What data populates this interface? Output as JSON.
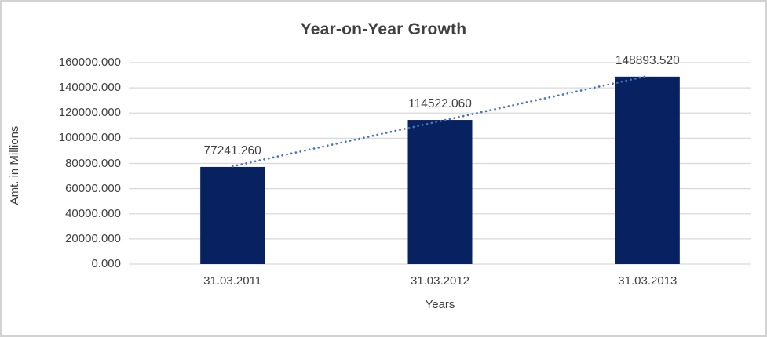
{
  "window": {
    "background": "#ffffff",
    "border_color": "#d2d2d2"
  },
  "chart_data": {
    "type": "bar",
    "title": "Year-on-Year Growth",
    "xlabel": "Years",
    "ylabel": "Amt. in Millions",
    "categories": [
      "31.03.2011",
      "31.03.2012",
      "31.03.2013"
    ],
    "values": [
      77241.26,
      114522.06,
      148893.52
    ],
    "data_labels": [
      "77241.260",
      "114522.060",
      "148893.520"
    ],
    "series_name": "Amt. in Millions",
    "ylim": [
      0,
      160000
    ],
    "y_ticks": [
      {
        "value": 0,
        "label": "0.000"
      },
      {
        "value": 20000,
        "label": "20000.000"
      },
      {
        "value": 40000,
        "label": "40000.000"
      },
      {
        "value": 60000,
        "label": "60000.000"
      },
      {
        "value": 80000,
        "label": "80000.000"
      },
      {
        "value": 100000,
        "label": "100000.000"
      },
      {
        "value": 120000,
        "label": "120000.000"
      },
      {
        "value": 140000,
        "label": "140000.000"
      },
      {
        "value": 160000,
        "label": "160000.000"
      }
    ],
    "grid": true,
    "legend": "none",
    "trendline": {
      "type": "linear",
      "style": "dotted"
    },
    "colors": {
      "bar": "#082160",
      "trendline": "#4472c4",
      "gridline": "#d9d9d9",
      "axis_line": "#d9d9d9",
      "text": "#404040",
      "title_text": "#404040",
      "plot_background": "#ffffff"
    }
  }
}
